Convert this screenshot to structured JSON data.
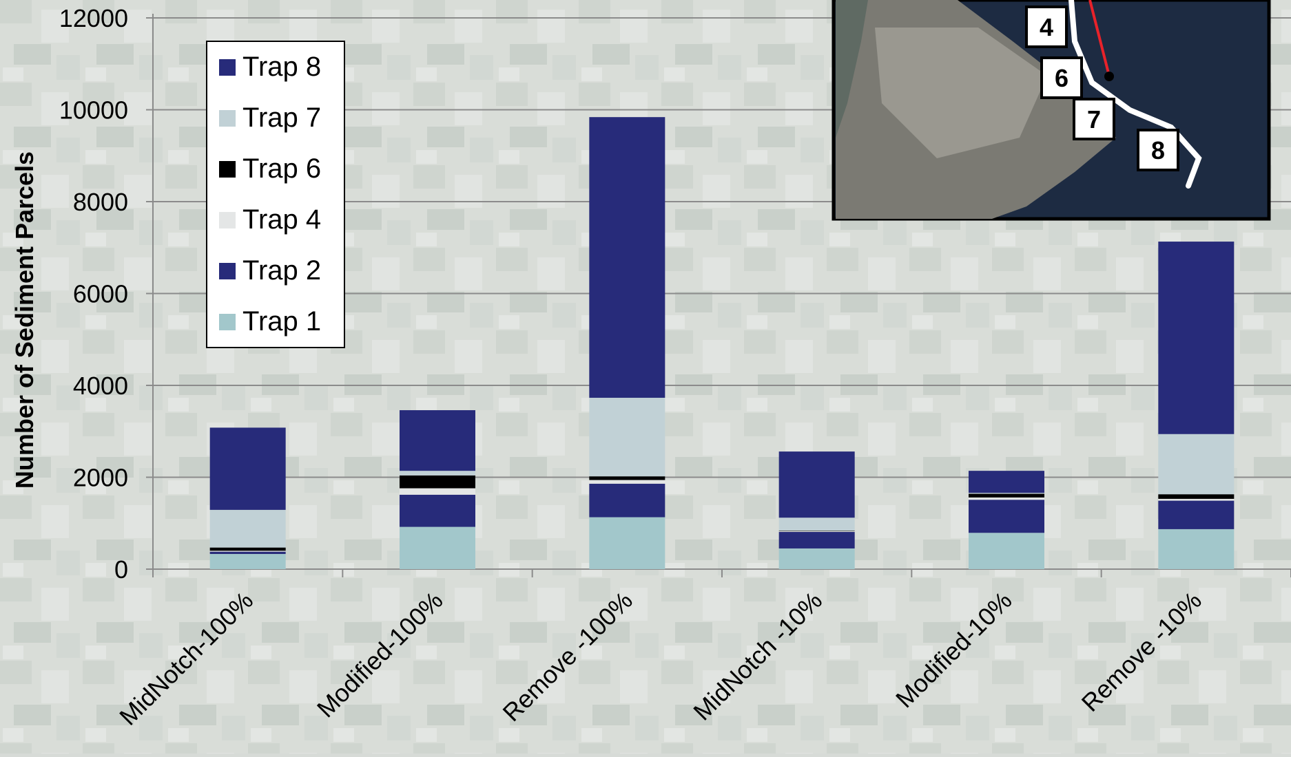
{
  "chart_data": {
    "type": "bar",
    "stacked": true,
    "title": "",
    "xlabel": "",
    "ylabel": "Number of Sediment Parcels",
    "ylim": [
      0,
      12000
    ],
    "yticks": [
      0,
      2000,
      4000,
      6000,
      8000,
      10000,
      12000
    ],
    "grid": true,
    "legend_position": "top-left",
    "categories": [
      "MidNotch-100%",
      "Modified-100%",
      "Remove -100%",
      "MidNotch -10%",
      "Modified-10%",
      "Remove -10%"
    ],
    "series": [
      {
        "name": "Trap 1",
        "color": "#a2c7cb",
        "values": [
          330,
          920,
          1130,
          450,
          790,
          870
        ]
      },
      {
        "name": "Trap 2",
        "color": "#272b7a",
        "values": [
          50,
          700,
          730,
          360,
          720,
          620
        ]
      },
      {
        "name": "Trap 4",
        "color": "#e4e6e6",
        "values": [
          20,
          140,
          80,
          20,
          50,
          40
        ]
      },
      {
        "name": "Trap 6",
        "color": "#000000",
        "values": [
          70,
          280,
          80,
          10,
          80,
          100
        ]
      },
      {
        "name": "Trap 7",
        "color": "#c1d1d6",
        "values": [
          820,
          100,
          1710,
          280,
          20,
          1310
        ]
      },
      {
        "name": "Trap 8",
        "color": "#272b7a",
        "values": [
          1790,
          1320,
          6110,
          1440,
          480,
          4190
        ]
      }
    ],
    "legend_order": [
      "Trap 8",
      "Trap 7",
      "Trap 6",
      "Trap 4",
      "Trap 2",
      "Trap 1"
    ]
  },
  "inset": {
    "labels": [
      "4",
      "6",
      "7",
      "8"
    ]
  }
}
